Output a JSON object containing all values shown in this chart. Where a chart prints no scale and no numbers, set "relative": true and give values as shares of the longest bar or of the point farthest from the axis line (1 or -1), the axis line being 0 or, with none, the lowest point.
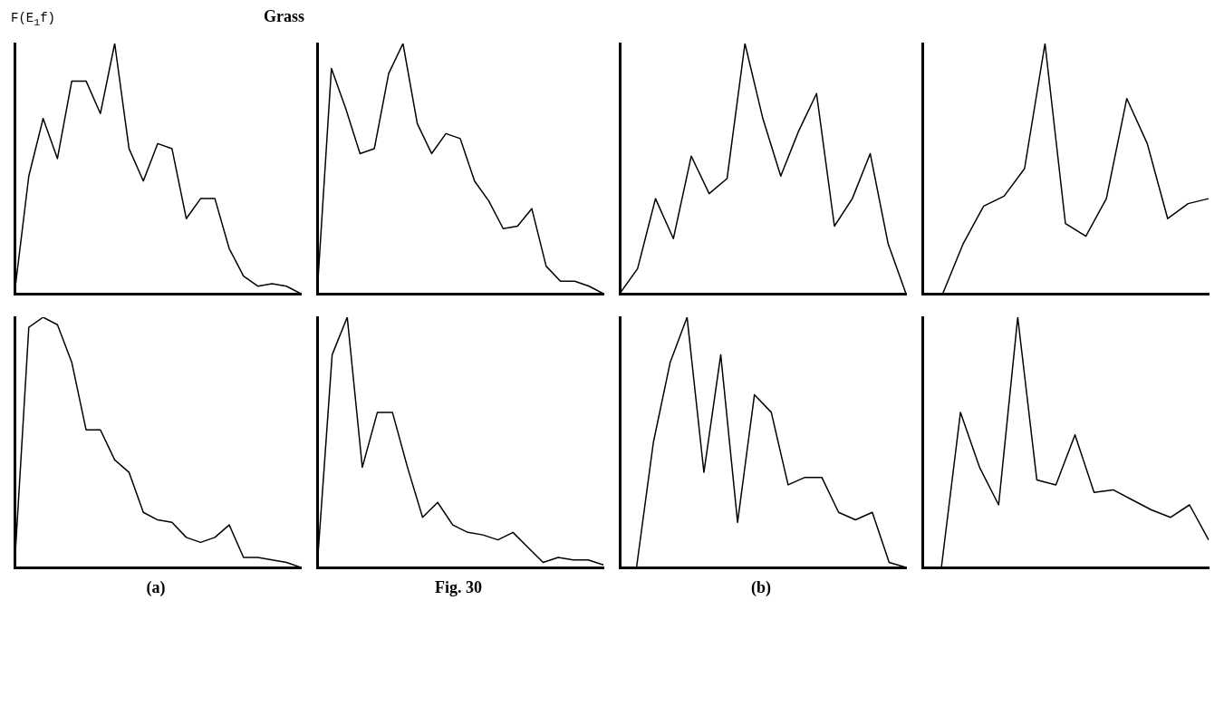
{
  "chart_data": [
    {
      "type": "line",
      "title": "Grass",
      "ylabel": "F(E$_{1}$f)",
      "relative": true,
      "color": "#000000",
      "categories": [
        null,
        null,
        null,
        null,
        null,
        null,
        null,
        null,
        null,
        null,
        null,
        null,
        null,
        null,
        null,
        null,
        null,
        null,
        null,
        null,
        null
      ],
      "values": [
        0,
        0.47,
        0.7,
        0.54,
        0.85,
        0.85,
        0.72,
        1,
        0.58,
        0.45,
        0.6,
        0.58,
        0.3,
        0.38,
        0.38,
        0.18,
        0.07,
        0.03,
        0.04,
        0.03,
        0
      ]
    },
    {
      "type": "line",
      "relative": true,
      "color": "#000000",
      "categories": [
        null,
        null,
        null,
        null,
        null,
        null,
        null,
        null,
        null,
        null,
        null,
        null,
        null,
        null,
        null,
        null,
        null,
        null,
        null,
        null,
        null
      ],
      "values": [
        0,
        0.9,
        0.74,
        0.56,
        0.58,
        0.88,
        1,
        0.68,
        0.56,
        0.64,
        0.62,
        0.45,
        0.37,
        0.26,
        0.27,
        0.34,
        0.11,
        0.05,
        0.05,
        0.03,
        0
      ]
    },
    {
      "type": "line",
      "relative": true,
      "color": "#000000",
      "categories": [
        null,
        null,
        null,
        null,
        null,
        null,
        null,
        null,
        null,
        null,
        null,
        null,
        null,
        null,
        null,
        null,
        null
      ],
      "values": [
        0,
        0.1,
        0.38,
        0.22,
        0.55,
        0.4,
        0.46,
        1,
        0.7,
        0.47,
        0.65,
        0.8,
        0.27,
        0.38,
        0.56,
        0.2,
        0
      ]
    },
    {
      "type": "line",
      "relative": true,
      "color": "#000000",
      "categories": [
        null,
        null,
        null,
        null,
        null,
        null,
        null,
        null,
        null,
        null,
        null,
        null,
        null,
        null,
        null
      ],
      "values": [
        0,
        0,
        0.2,
        0.35,
        0.39,
        0.5,
        1,
        0.28,
        0.23,
        0.38,
        0.78,
        0.6,
        0.3,
        0.36,
        0.38
      ]
    },
    {
      "type": "line",
      "relative": true,
      "color": "#000000",
      "annotations": [
        "(a)"
      ],
      "categories": [
        null,
        null,
        null,
        null,
        null,
        null,
        null,
        null,
        null,
        null,
        null,
        null,
        null,
        null,
        null,
        null,
        null,
        null,
        null,
        null,
        null
      ],
      "values": [
        0,
        0.96,
        1,
        0.97,
        0.82,
        0.55,
        0.55,
        0.43,
        0.38,
        0.22,
        0.19,
        0.18,
        0.12,
        0.1,
        0.12,
        0.17,
        0.04,
        0.04,
        0.03,
        0.02,
        0
      ]
    },
    {
      "type": "line",
      "relative": true,
      "color": "#000000",
      "annotations": [
        "Fig. 30"
      ],
      "categories": [
        null,
        null,
        null,
        null,
        null,
        null,
        null,
        null,
        null,
        null,
        null,
        null,
        null,
        null,
        null,
        null,
        null,
        null,
        null,
        null
      ],
      "values": [
        0,
        0.85,
        1,
        0.4,
        0.62,
        0.62,
        0.4,
        0.2,
        0.26,
        0.17,
        0.14,
        0.13,
        0.11,
        0.14,
        0.08,
        0.02,
        0.04,
        0.03,
        0.03,
        0.01
      ]
    },
    {
      "type": "line",
      "relative": true,
      "color": "#000000",
      "annotations": [
        "(b)"
      ],
      "categories": [
        null,
        null,
        null,
        null,
        null,
        null,
        null,
        null,
        null,
        null,
        null,
        null,
        null,
        null,
        null,
        null,
        null,
        null
      ],
      "values": [
        0,
        0,
        0.5,
        0.82,
        1,
        0.38,
        0.85,
        0.18,
        0.69,
        0.62,
        0.33,
        0.36,
        0.36,
        0.22,
        0.19,
        0.22,
        0.02,
        0
      ]
    },
    {
      "type": "line",
      "relative": true,
      "color": "#000000",
      "categories": [
        null,
        null,
        null,
        null,
        null,
        null,
        null,
        null,
        null,
        null,
        null,
        null,
        null,
        null,
        null,
        null
      ],
      "values": [
        0,
        0,
        0.62,
        0.4,
        0.25,
        1,
        0.35,
        0.33,
        0.53,
        0.3,
        0.31,
        0.27,
        0.23,
        0.2,
        0.25,
        0.11
      ]
    }
  ]
}
